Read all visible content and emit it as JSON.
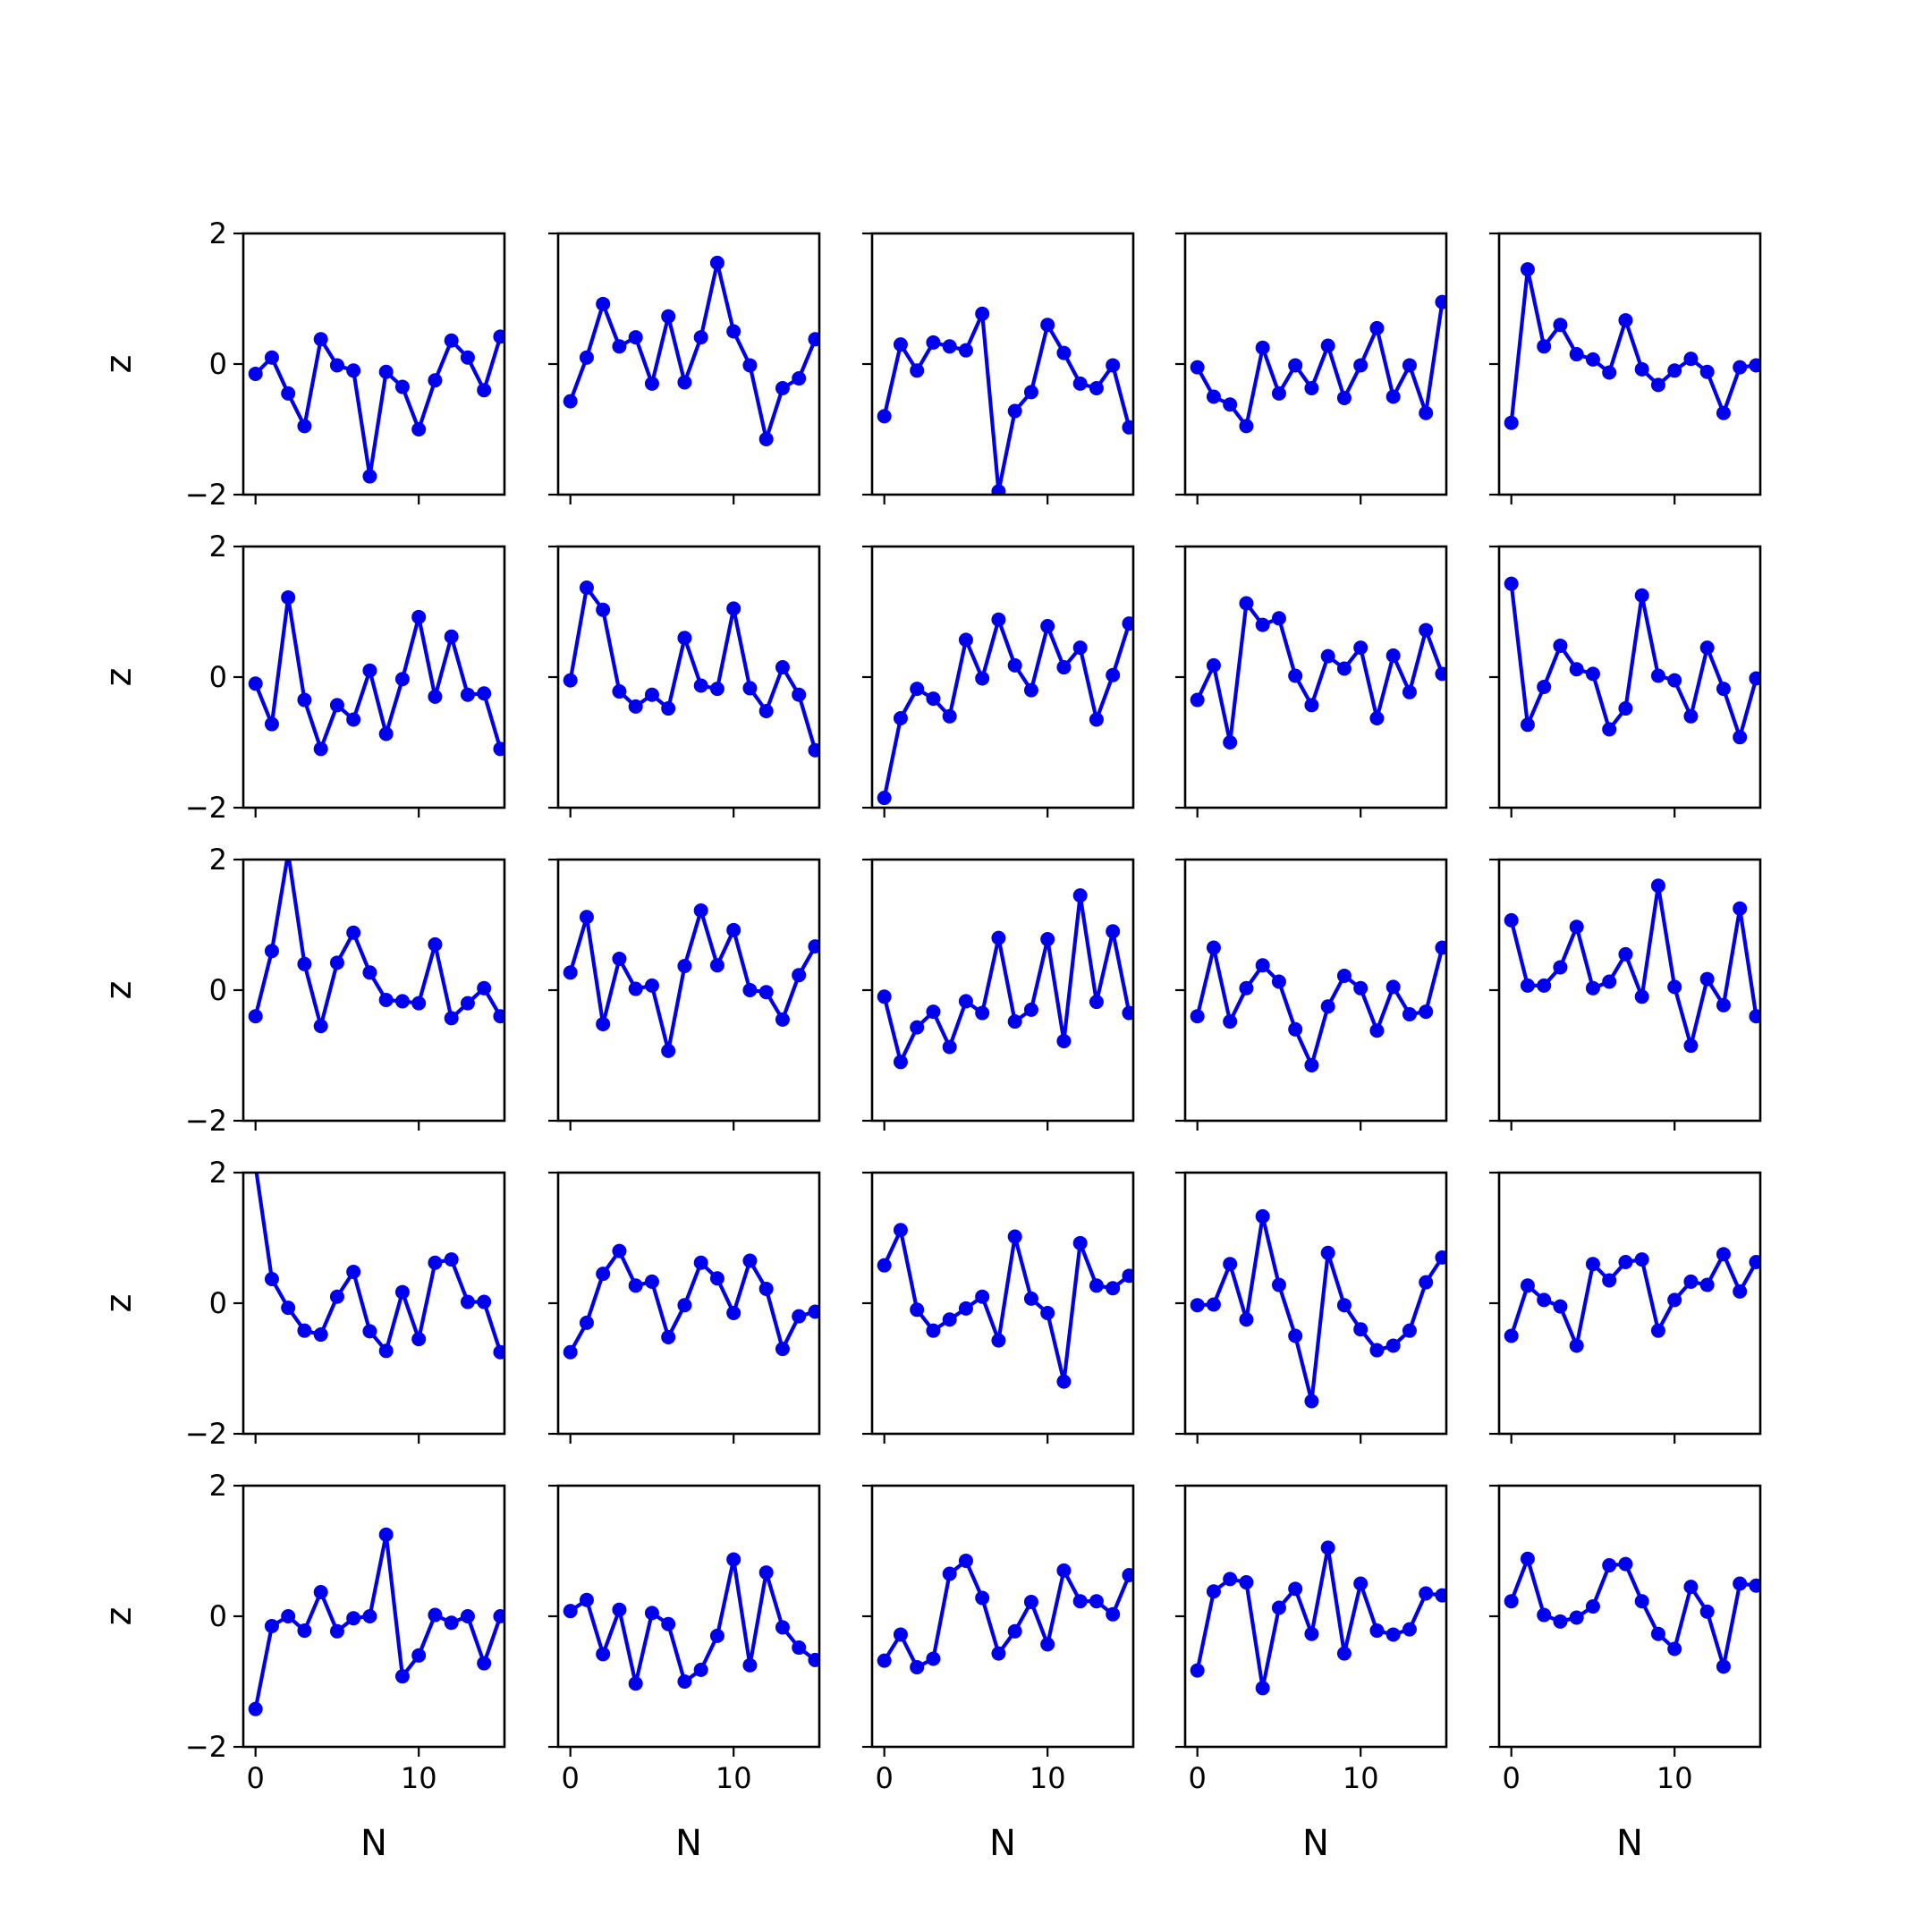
{
  "chart_data": {
    "type": "line",
    "layout": "5x5 grid of small multiples",
    "xlabel": "N",
    "ylabel": "z",
    "xlim": [
      -0.75,
      15.25
    ],
    "ylim": [
      -2,
      2
    ],
    "xticks": [
      0,
      10
    ],
    "yticks": [
      -2,
      0,
      2
    ],
    "xtick_labels": [
      "0",
      "10"
    ],
    "ytick_labels": [
      "−2",
      "0",
      "2"
    ],
    "x": [
      0,
      1,
      2,
      3,
      4,
      5,
      6,
      7,
      8,
      9,
      10,
      11,
      12,
      13,
      14,
      15
    ],
    "grid": false,
    "line_color": "#0000ee",
    "marker": "circle",
    "panels": [
      {
        "values": [
          -0.15,
          0.1,
          -0.45,
          -0.95,
          0.38,
          -0.02,
          -0.1,
          -1.72,
          -0.12,
          -0.35,
          -1.0,
          -0.25,
          0.36,
          0.1,
          -0.4,
          0.42
        ]
      },
      {
        "values": [
          -0.57,
          0.1,
          0.92,
          0.27,
          0.41,
          -0.3,
          0.73,
          -0.28,
          0.41,
          1.55,
          0.5,
          -0.02,
          -1.15,
          -0.37,
          -0.22,
          0.38
        ]
      },
      {
        "values": [
          -0.8,
          0.3,
          -0.1,
          0.33,
          0.27,
          0.21,
          0.77,
          -1.95,
          -0.72,
          -0.43,
          0.6,
          0.17,
          -0.3,
          -0.37,
          -0.02,
          -0.97
        ]
      },
      {
        "values": [
          -0.05,
          -0.5,
          -0.62,
          -0.95,
          0.25,
          -0.45,
          -0.02,
          -0.37,
          0.28,
          -0.52,
          -0.02,
          0.55,
          -0.5,
          -0.02,
          -0.75,
          0.95
        ]
      },
      {
        "values": [
          -0.9,
          1.45,
          0.27,
          0.6,
          0.15,
          0.07,
          -0.13,
          0.67,
          -0.08,
          -0.32,
          -0.1,
          0.08,
          -0.12,
          -0.75,
          -0.05,
          -0.02
        ]
      },
      {
        "values": [
          -0.1,
          -0.72,
          1.22,
          -0.35,
          -1.1,
          -0.43,
          -0.65,
          0.1,
          -0.87,
          -0.03,
          0.92,
          -0.3,
          0.62,
          -0.27,
          -0.25,
          -1.1
        ]
      },
      {
        "values": [
          -0.05,
          1.37,
          1.03,
          -0.22,
          -0.45,
          -0.27,
          -0.48,
          0.6,
          -0.13,
          -0.18,
          1.05,
          -0.17,
          -0.52,
          0.15,
          -0.27,
          -1.12
        ]
      },
      {
        "values": [
          -1.85,
          -0.63,
          -0.18,
          -0.33,
          -0.6,
          0.57,
          -0.02,
          0.88,
          0.18,
          -0.2,
          0.78,
          0.15,
          0.45,
          -0.65,
          0.03,
          0.82
        ]
      },
      {
        "values": [
          -0.35,
          0.18,
          -1.0,
          1.13,
          0.8,
          0.9,
          0.02,
          -0.43,
          0.32,
          0.13,
          0.45,
          -0.63,
          0.33,
          -0.23,
          0.72,
          0.05
        ]
      },
      {
        "values": [
          1.43,
          -0.73,
          -0.15,
          0.48,
          0.12,
          0.05,
          -0.8,
          -0.48,
          1.25,
          0.02,
          -0.05,
          -0.6,
          0.45,
          -0.18,
          -0.92,
          -0.02
        ]
      },
      {
        "values": [
          -0.4,
          0.6,
          2.1,
          0.4,
          -0.55,
          0.42,
          0.88,
          0.27,
          -0.15,
          -0.17,
          -0.2,
          0.7,
          -0.43,
          -0.2,
          0.03,
          -0.4
        ]
      },
      {
        "values": [
          0.27,
          1.12,
          -0.52,
          0.48,
          0.02,
          0.07,
          -0.93,
          0.37,
          1.22,
          0.38,
          0.92,
          0.0,
          -0.03,
          -0.45,
          0.23,
          0.67
        ]
      },
      {
        "values": [
          -0.1,
          -1.1,
          -0.57,
          -0.33,
          -0.87,
          -0.17,
          -0.35,
          0.8,
          -0.48,
          -0.3,
          0.78,
          -0.78,
          1.45,
          -0.18,
          0.9,
          -0.35
        ]
      },
      {
        "values": [
          -0.4,
          0.65,
          -0.48,
          0.03,
          0.38,
          0.13,
          -0.6,
          -1.15,
          -0.25,
          0.22,
          0.03,
          -0.62,
          0.05,
          -0.37,
          -0.33,
          0.65
        ]
      },
      {
        "values": [
          1.07,
          0.07,
          0.07,
          0.35,
          0.97,
          0.03,
          0.13,
          0.55,
          -0.1,
          1.6,
          0.05,
          -0.85,
          0.17,
          -0.23,
          1.25,
          -0.4
        ]
      },
      {
        "values": [
          2.1,
          0.37,
          -0.07,
          -0.42,
          -0.48,
          0.1,
          0.48,
          -0.43,
          -0.73,
          0.17,
          -0.55,
          0.62,
          0.67,
          0.02,
          0.02,
          -0.75
        ]
      },
      {
        "values": [
          -0.75,
          -0.3,
          0.45,
          0.8,
          0.27,
          0.33,
          -0.52,
          -0.03,
          0.62,
          0.38,
          -0.15,
          0.65,
          0.22,
          -0.7,
          -0.2,
          -0.13
        ]
      },
      {
        "values": [
          0.58,
          1.12,
          -0.1,
          -0.42,
          -0.25,
          -0.08,
          0.1,
          -0.57,
          1.02,
          0.07,
          -0.15,
          -1.2,
          0.92,
          0.27,
          0.23,
          0.42
        ]
      },
      {
        "values": [
          -0.03,
          -0.02,
          0.6,
          -0.25,
          1.33,
          0.28,
          -0.5,
          -1.5,
          0.77,
          -0.03,
          -0.4,
          -0.72,
          -0.65,
          -0.42,
          0.32,
          0.7
        ]
      },
      {
        "values": [
          -0.5,
          0.27,
          0.05,
          -0.05,
          -0.65,
          0.6,
          0.35,
          0.63,
          0.67,
          -0.42,
          0.05,
          0.33,
          0.28,
          0.75,
          0.18,
          0.63
        ]
      },
      {
        "values": [
          -1.42,
          -0.15,
          0.0,
          -0.22,
          0.37,
          -0.23,
          -0.03,
          0.0,
          1.25,
          -0.92,
          -0.6,
          0.02,
          -0.1,
          0.0,
          -0.72,
          0.0
        ]
      },
      {
        "values": [
          0.08,
          0.25,
          -0.58,
          0.1,
          -1.03,
          0.05,
          -0.12,
          -1.0,
          -0.82,
          -0.3,
          0.87,
          -0.75,
          0.67,
          -0.17,
          -0.48,
          -0.67
        ]
      },
      {
        "values": [
          -0.68,
          -0.28,
          -0.78,
          -0.65,
          0.65,
          0.85,
          0.28,
          -0.57,
          -0.23,
          0.22,
          -0.43,
          0.7,
          0.23,
          0.23,
          0.03,
          0.63
        ]
      },
      {
        "values": [
          -0.83,
          0.38,
          0.57,
          0.52,
          -1.1,
          0.13,
          0.42,
          -0.27,
          1.05,
          -0.57,
          0.5,
          -0.22,
          -0.28,
          -0.2,
          0.35,
          0.32
        ]
      },
      {
        "values": [
          0.23,
          0.88,
          0.02,
          -0.08,
          -0.02,
          0.15,
          0.78,
          0.8,
          0.23,
          -0.27,
          -0.5,
          0.45,
          0.07,
          -0.77,
          0.5,
          0.47
        ]
      }
    ]
  }
}
